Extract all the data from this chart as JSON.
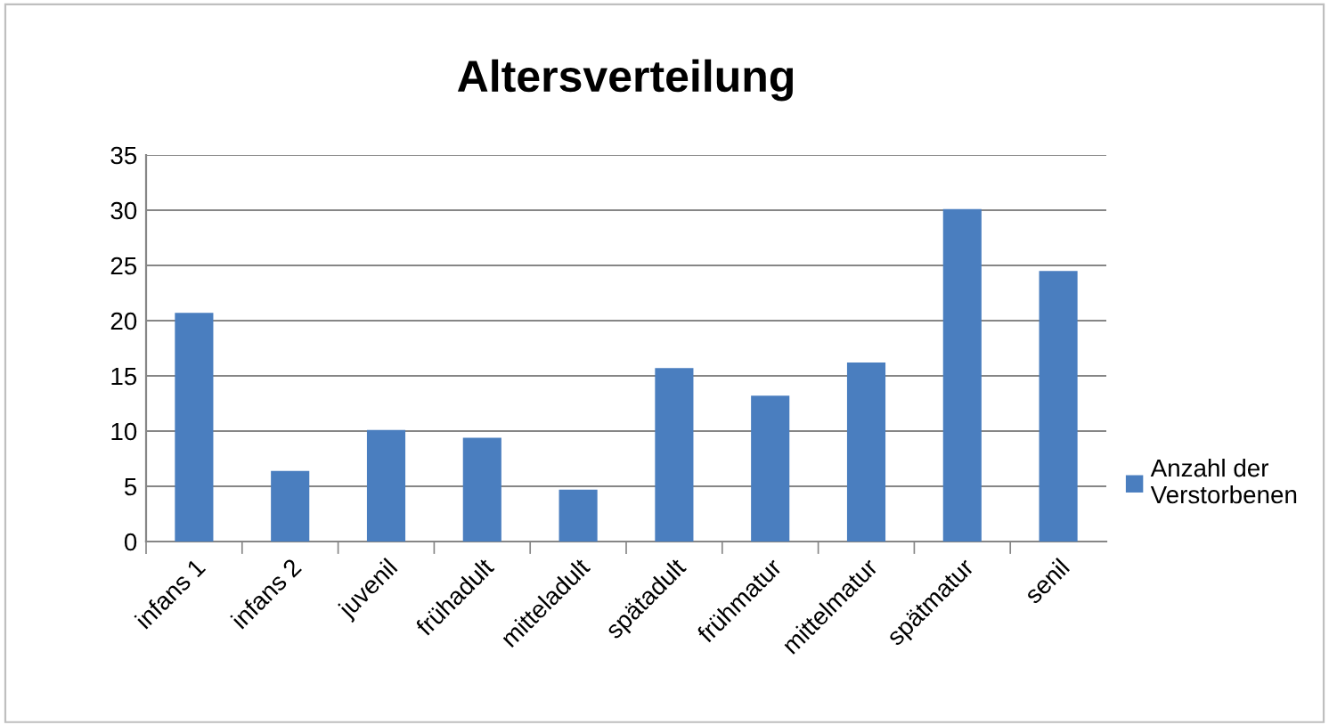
{
  "chart_data": {
    "type": "bar",
    "title": "Altersverteilung",
    "categories": [
      "infans 1",
      "infans 2",
      "juvenil",
      "frühadult",
      "mitteladult",
      "spätadult",
      "frühmatur",
      "mittelmatur",
      "spätmatur",
      "senil"
    ],
    "series": [
      {
        "name": "Anzahl der\nVerstorbenen",
        "color": "#4a7ebf",
        "values": [
          20.7,
          6.4,
          10.1,
          9.4,
          4.7,
          15.7,
          13.2,
          16.2,
          30.1,
          24.5
        ]
      }
    ],
    "ylim": [
      0,
      35
    ],
    "yticks": [
      0,
      5,
      10,
      15,
      20,
      25,
      30,
      35
    ],
    "grid": "y",
    "legend": "right"
  }
}
